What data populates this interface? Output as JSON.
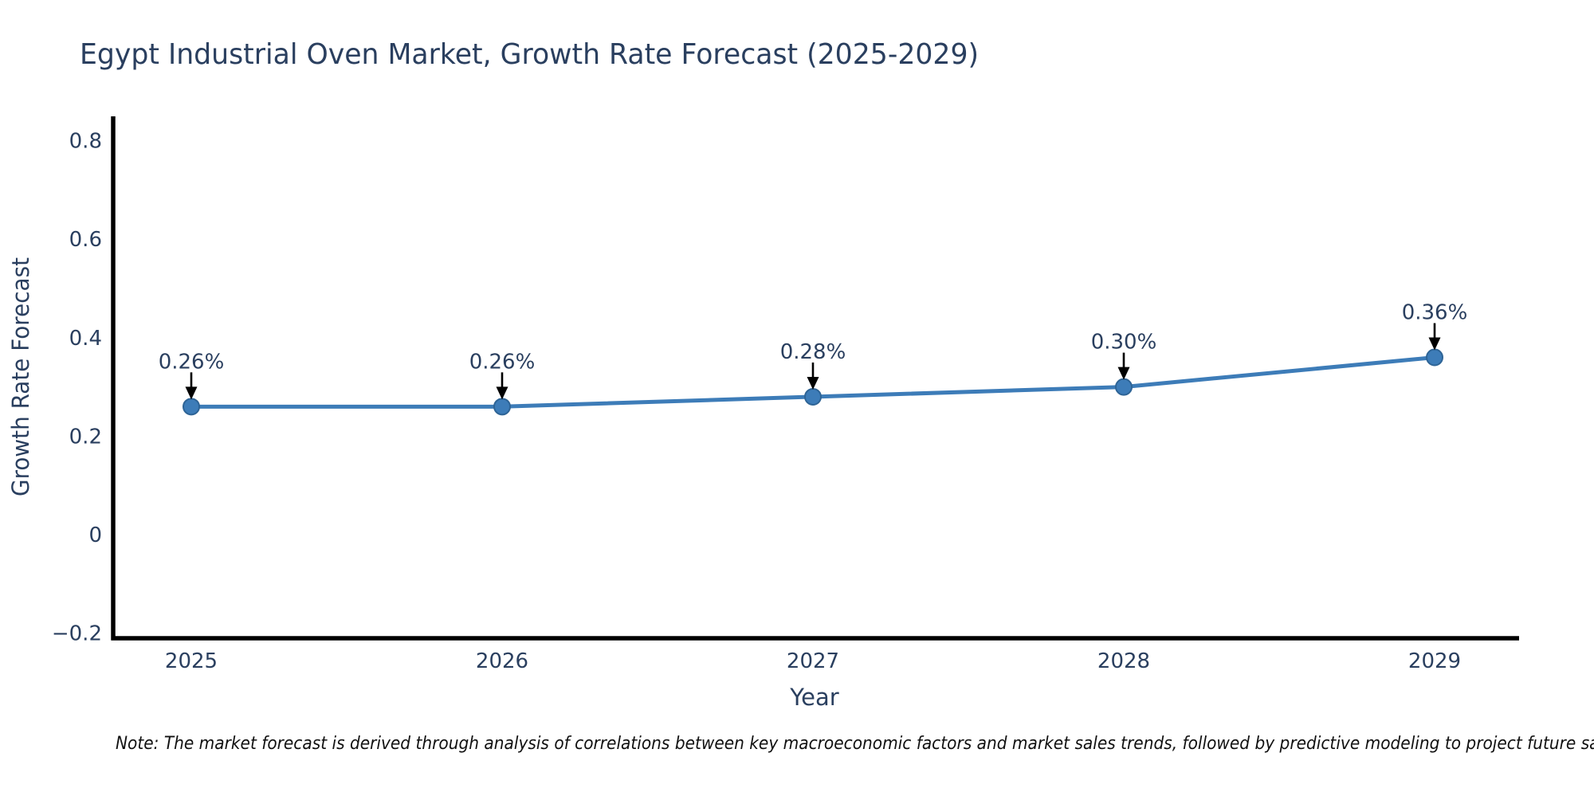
{
  "chart_data": {
    "type": "line",
    "title": "Egypt Industrial Oven Market, Growth Rate Forecast (2025-2029)",
    "xlabel": "Year",
    "ylabel": "Growth Rate Forecast",
    "categories": [
      2025,
      2026,
      2027,
      2028,
      2029
    ],
    "x_tick_labels": [
      "2025",
      "2026",
      "2027",
      "2028",
      "2029"
    ],
    "series": [
      {
        "name": "Growth Rate Forecast",
        "values": [
          0.26,
          0.26,
          0.28,
          0.3,
          0.36
        ],
        "point_labels": [
          "0.26%",
          "0.26%",
          "0.28%",
          "0.30%",
          "0.36%"
        ]
      }
    ],
    "y_ticks": [
      0.8,
      0.6,
      0.4,
      0.2,
      0,
      -0.2
    ],
    "y_tick_labels": [
      "0.8",
      "0.6",
      "0.4",
      "0.2",
      "0",
      "−0.2"
    ],
    "ylim": [
      -0.235,
      0.85
    ],
    "grid": false,
    "legend": "none",
    "annotation_style": "value-label-with-down-arrow-to-point",
    "colors": {
      "line": "#3d7cb8",
      "marker_fill": "#3d7cb8",
      "marker_edge": "#2e6496",
      "text": "#2a3f5f",
      "axis": "#000000",
      "note": "#111111",
      "background": "#ffffff"
    }
  },
  "note": "Note: The market forecast is derived through analysis of correlations between key macroeconomic factors and market sales trends, followed by predictive modeling to project future sales"
}
